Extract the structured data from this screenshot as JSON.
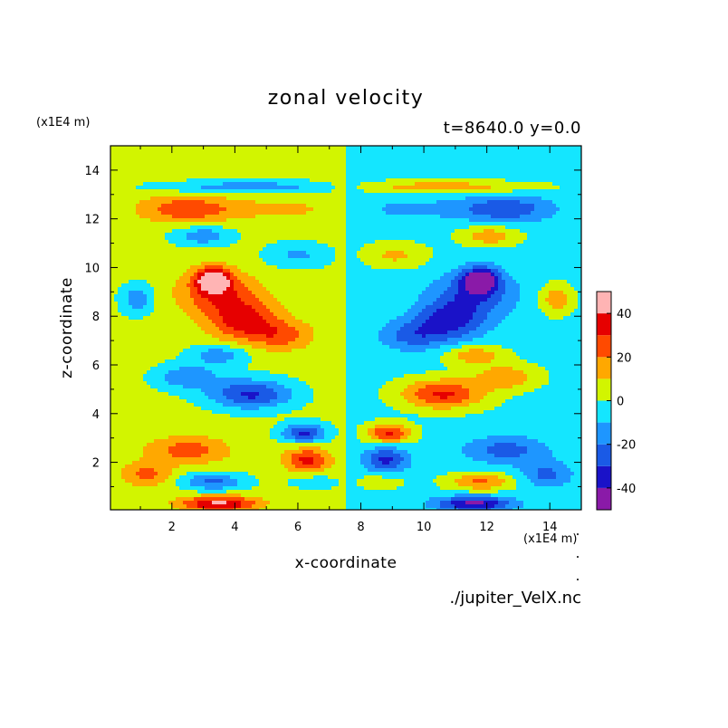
{
  "chart_data": {
    "type": "heatmap",
    "title": "zonal velocity",
    "subtitle": "t=8640.0 y=0.0",
    "xlabel": "x-coordinate",
    "ylabel": "z-coordinate",
    "x_unit": "(x1E4 m)",
    "y_unit": "(x1E4 m)",
    "xlim": [
      0.05,
      15.0
    ],
    "ylim": [
      0.05,
      15.0
    ],
    "x_ticks": [
      "2",
      "4",
      "6",
      "8",
      "10",
      "12",
      "14"
    ],
    "y_ticks": [
      "2",
      "4",
      "6",
      "8",
      "10",
      "12",
      "14"
    ],
    "colorbar": {
      "levels": [
        -50,
        -40,
        -30,
        -20,
        -10,
        0,
        10,
        20,
        30,
        40,
        50
      ],
      "tick_labels": [
        "40",
        "20",
        "0",
        "-20",
        "-40"
      ],
      "tick_values": [
        40,
        20,
        0,
        -20,
        -40
      ],
      "colors": [
        "#8a1aa8",
        "#1a12c8",
        "#1a5ae6",
        "#1e96ff",
        "#14e6ff",
        "#d2f500",
        "#ffa800",
        "#ff4a00",
        "#e60000",
        "#ffb4b4"
      ]
    },
    "blobs": [
      {
        "x": 3.3,
        "z": 9.5,
        "v": 45,
        "rx": 0.55,
        "rz": 0.5
      },
      {
        "x": 3.5,
        "z": 8.9,
        "v": 25,
        "rx": 1.3,
        "rz": 0.9
      },
      {
        "x": 4.3,
        "z": 7.8,
        "v": 30,
        "rx": 1.1,
        "rz": 0.8
      },
      {
        "x": 5.5,
        "z": 7.2,
        "v": 20,
        "rx": 1.0,
        "rz": 0.6
      },
      {
        "x": 2.5,
        "z": 12.4,
        "v": 25,
        "rx": 1.5,
        "rz": 0.55
      },
      {
        "x": 5.5,
        "z": 12.4,
        "v": 10,
        "rx": 1.8,
        "rz": 0.4
      },
      {
        "x": 4.5,
        "z": 13.3,
        "v": -20,
        "rx": 2.8,
        "rz": 0.25
      },
      {
        "x": 3.0,
        "z": 11.3,
        "v": -20,
        "rx": 0.9,
        "rz": 0.4
      },
      {
        "x": 6.0,
        "z": 10.5,
        "v": -15,
        "rx": 1.0,
        "rz": 0.5
      },
      {
        "x": 4.5,
        "z": 4.8,
        "v": -35,
        "rx": 1.3,
        "rz": 0.6
      },
      {
        "x": 2.5,
        "z": 5.5,
        "v": -22,
        "rx": 1.0,
        "rz": 0.5
      },
      {
        "x": 3.5,
        "z": 6.4,
        "v": -20,
        "rx": 0.9,
        "rz": 0.4
      },
      {
        "x": 6.2,
        "z": 3.2,
        "v": -35,
        "rx": 0.7,
        "rz": 0.4
      },
      {
        "x": 6.3,
        "z": 2.1,
        "v": 30,
        "rx": 0.7,
        "rz": 0.5
      },
      {
        "x": 2.5,
        "z": 2.5,
        "v": 22,
        "rx": 1.3,
        "rz": 0.55
      },
      {
        "x": 1.2,
        "z": 1.5,
        "v": 20,
        "rx": 0.8,
        "rz": 0.5
      },
      {
        "x": 3.3,
        "z": 1.2,
        "v": -25,
        "rx": 1.0,
        "rz": 0.35
      },
      {
        "x": 3.5,
        "z": 0.3,
        "v": 40,
        "rx": 1.2,
        "rz": 0.3
      },
      {
        "x": 0.9,
        "z": 8.7,
        "v": -20,
        "rx": 0.5,
        "rz": 0.6
      },
      {
        "x": 6.5,
        "z": 1.2,
        "v": -10,
        "rx": 0.8,
        "rz": 0.3
      },
      {
        "x": 11.8,
        "z": 9.5,
        "v": -45,
        "rx": 0.55,
        "rz": 0.5
      },
      {
        "x": 11.6,
        "z": 8.9,
        "v": -25,
        "rx": 1.3,
        "rz": 0.9
      },
      {
        "x": 10.8,
        "z": 7.8,
        "v": -30,
        "rx": 1.1,
        "rz": 0.8
      },
      {
        "x": 9.6,
        "z": 7.2,
        "v": -20,
        "rx": 1.0,
        "rz": 0.6
      },
      {
        "x": 12.6,
        "z": 12.4,
        "v": -25,
        "rx": 1.5,
        "rz": 0.55
      },
      {
        "x": 9.6,
        "z": 12.4,
        "v": -10,
        "rx": 1.8,
        "rz": 0.4
      },
      {
        "x": 10.6,
        "z": 13.3,
        "v": 20,
        "rx": 2.8,
        "rz": 0.25
      },
      {
        "x": 12.1,
        "z": 11.3,
        "v": 20,
        "rx": 0.9,
        "rz": 0.4
      },
      {
        "x": 9.1,
        "z": 10.5,
        "v": 15,
        "rx": 1.0,
        "rz": 0.5
      },
      {
        "x": 10.6,
        "z": 4.8,
        "v": 35,
        "rx": 1.3,
        "rz": 0.6
      },
      {
        "x": 12.6,
        "z": 5.5,
        "v": 22,
        "rx": 1.0,
        "rz": 0.5
      },
      {
        "x": 11.6,
        "z": 6.4,
        "v": 20,
        "rx": 0.9,
        "rz": 0.4
      },
      {
        "x": 8.9,
        "z": 3.2,
        "v": 35,
        "rx": 0.7,
        "rz": 0.4
      },
      {
        "x": 8.8,
        "z": 2.1,
        "v": -30,
        "rx": 0.7,
        "rz": 0.5
      },
      {
        "x": 12.6,
        "z": 2.5,
        "v": -22,
        "rx": 1.3,
        "rz": 0.55
      },
      {
        "x": 13.9,
        "z": 1.5,
        "v": -20,
        "rx": 0.8,
        "rz": 0.5
      },
      {
        "x": 11.8,
        "z": 1.2,
        "v": 25,
        "rx": 1.0,
        "rz": 0.35
      },
      {
        "x": 11.6,
        "z": 0.3,
        "v": -40,
        "rx": 1.2,
        "rz": 0.3
      },
      {
        "x": 14.2,
        "z": 8.7,
        "v": 20,
        "rx": 0.5,
        "rz": 0.6
      },
      {
        "x": 8.6,
        "z": 1.2,
        "v": 10,
        "rx": 0.8,
        "rz": 0.3
      }
    ]
  },
  "footer": {
    "source": "./jupiter_VelX.nc"
  }
}
